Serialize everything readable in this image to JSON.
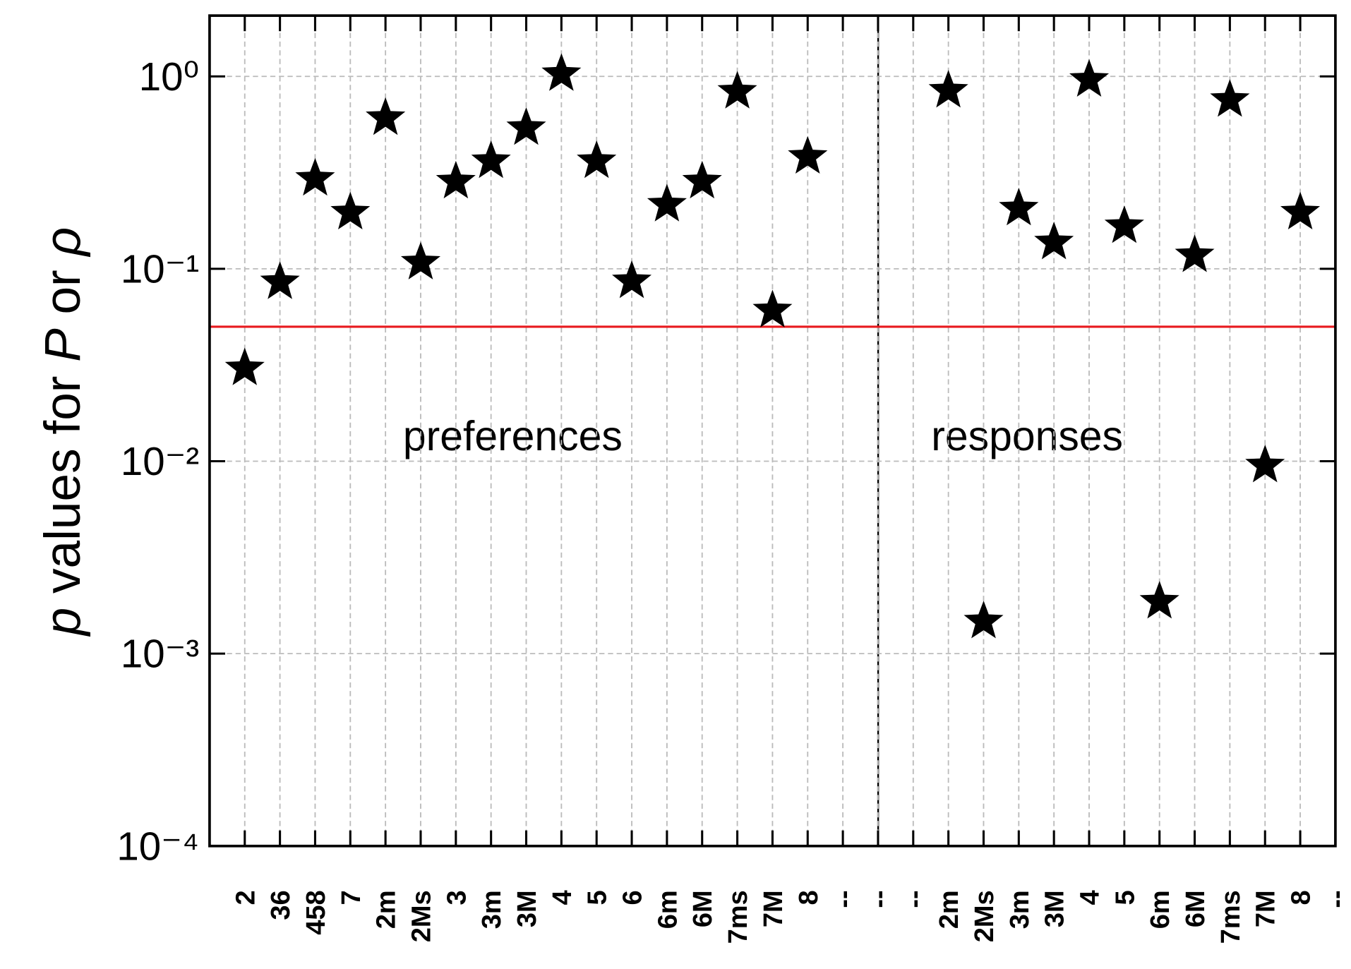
{
  "chart_data": {
    "type": "scatter",
    "ylabel_parts": [
      {
        "text": "p",
        "italic": true
      },
      {
        "text": " values for ",
        "italic": false
      },
      {
        "text": "P",
        "italic": true
      },
      {
        "text": " or ",
        "italic": false
      },
      {
        "text": "ρ",
        "italic": true
      }
    ],
    "annotations": [
      "preferences",
      "responses"
    ],
    "categories": [
      "2",
      "36",
      "458",
      "7",
      "2m",
      "2Ms",
      "3",
      "3m",
      "3M",
      "4",
      "5",
      "6",
      "6m",
      "6M",
      "7ms",
      "7M",
      "8",
      "--",
      "--",
      "--",
      "2m",
      "2Ms",
      "3m",
      "3M",
      "4",
      "5",
      "6m",
      "6M",
      "7ms",
      "7M",
      "8",
      "--"
    ],
    "values": [
      0.031,
      0.087,
      0.3,
      0.2,
      0.62,
      0.11,
      0.29,
      0.37,
      0.55,
      1.05,
      0.37,
      0.088,
      0.22,
      0.29,
      0.85,
      0.062,
      0.39,
      null,
      null,
      null,
      0.86,
      0.0015,
      0.21,
      0.14,
      0.98,
      0.17,
      0.0019,
      0.12,
      0.77,
      0.0097,
      0.2,
      null
    ],
    "color": "#000000",
    "threshold": {
      "value": 0.05,
      "color": "#e8191d"
    },
    "log_y": true,
    "ylim": [
      0.0001,
      2.07
    ],
    "yticks": [
      {
        "value": 0.0001,
        "label": "10⁻⁴"
      },
      {
        "value": 0.001,
        "label": "10⁻³"
      },
      {
        "value": 0.01,
        "label": "10⁻²"
      },
      {
        "value": 0.1,
        "label": "10⁻¹"
      },
      {
        "value": 1,
        "label": "10⁰"
      }
    ],
    "grid": true
  }
}
